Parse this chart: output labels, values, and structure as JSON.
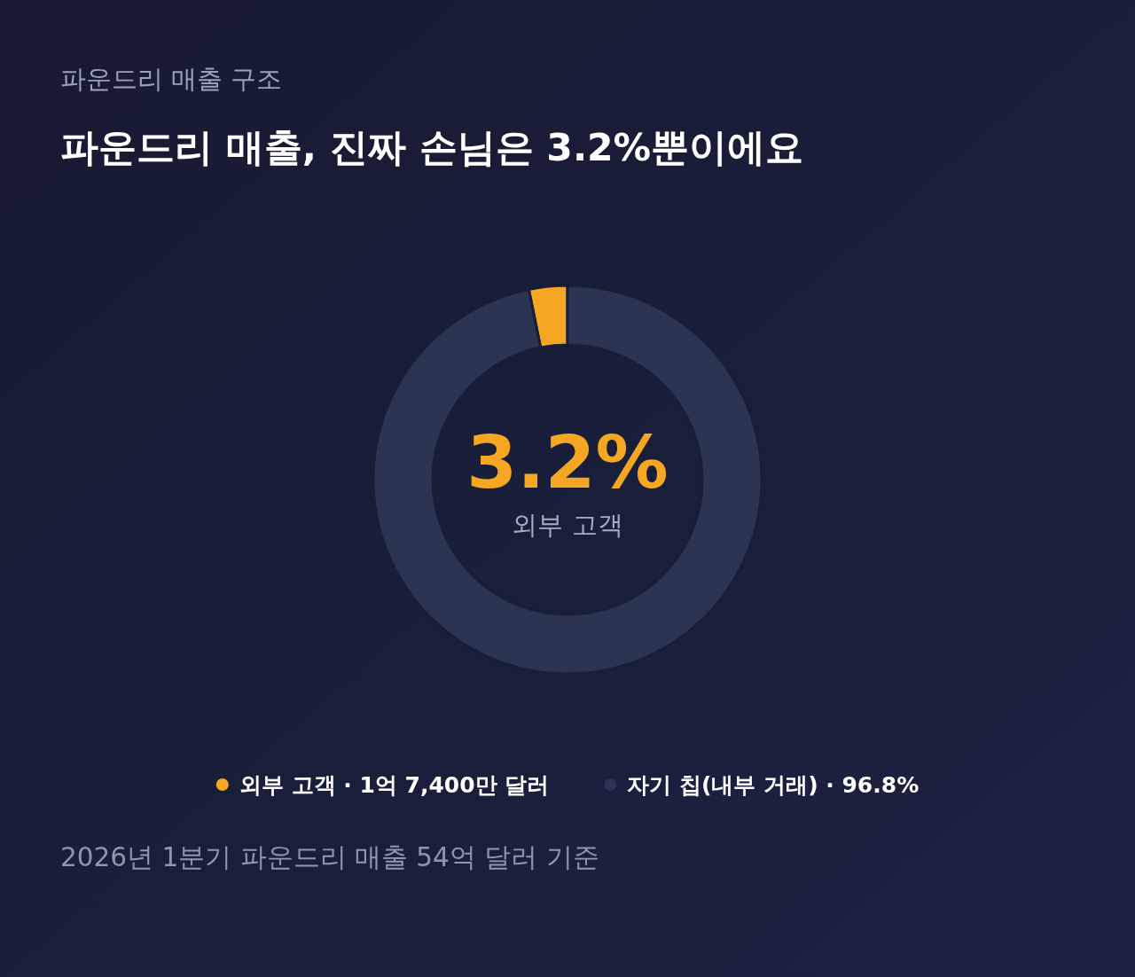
{
  "chart_data": {
    "type": "donut",
    "subtitle": "파운드리 매출 구조",
    "title": "파운드리 매출, 진짜 손님은 3.2%뿐이에요",
    "categories": [
      "외부 고객 · 1억 7,400만 달러",
      "자기 칩(내부 거래) · 96.8%"
    ],
    "values": [
      3.2,
      96.8
    ],
    "colors": [
      "#f5a623",
      "#2b3452"
    ],
    "value_labels": [
      "3.2%",
      null
    ],
    "annotations": [
      "외부 고객",
      "2026년 1분기 파운드리 매출 54억 달러 기준"
    ],
    "legend": "bottom"
  }
}
